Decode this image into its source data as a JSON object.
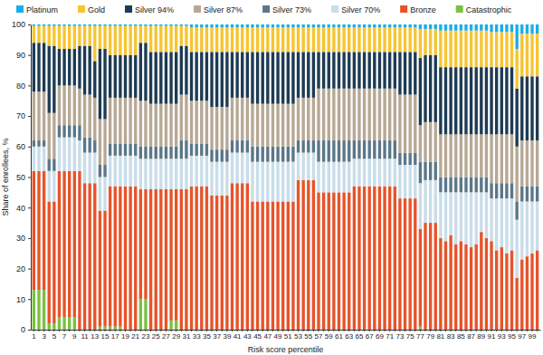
{
  "chart_data": {
    "type": "bar",
    "x_label": "Risk score percentile",
    "y_label": "Share of enrollees, %",
    "stacked": true,
    "legend": "top",
    "ylim": [
      0,
      100
    ],
    "yticks": [
      0,
      10,
      20,
      30,
      40,
      50,
      60,
      70,
      80,
      90,
      100
    ],
    "categories": [
      1,
      null,
      3,
      null,
      5,
      null,
      7,
      null,
      9,
      null,
      11,
      null,
      13,
      null,
      15,
      null,
      17,
      null,
      19,
      null,
      21,
      null,
      23,
      null,
      25,
      null,
      27,
      null,
      29,
      null,
      31,
      null,
      33,
      null,
      35,
      null,
      37,
      null,
      39,
      null,
      41,
      null,
      43,
      null,
      45,
      null,
      47,
      null,
      49,
      null,
      51,
      null,
      53,
      null,
      55,
      null,
      57,
      null,
      59,
      null,
      61,
      null,
      63,
      null,
      65,
      null,
      67,
      null,
      69,
      null,
      71,
      null,
      73,
      null,
      75,
      null,
      77,
      null,
      79,
      null,
      81,
      null,
      83,
      null,
      85,
      null,
      87,
      null,
      89,
      null,
      91,
      null,
      93,
      null,
      95,
      null,
      97,
      null,
      99,
      null
    ],
    "series": [
      {
        "name": "Platinum",
        "color": "#1aaee8",
        "values": [
          0.5,
          0.5,
          0.5,
          0.5,
          0.5,
          0.5,
          0.5,
          0.5,
          0.5,
          0.5,
          0.5,
          0.5,
          0.5,
          0.5,
          0.5,
          0.5,
          0.5,
          0.5,
          0.5,
          0.5,
          0.5,
          0.5,
          0.5,
          0.5,
          0.5,
          0.5,
          0.5,
          0.5,
          0.5,
          0.5,
          0.5,
          1,
          1,
          1,
          1,
          1,
          1,
          1,
          1,
          1,
          1,
          1,
          1,
          1,
          1,
          1,
          1,
          1,
          1,
          1,
          1,
          1,
          1,
          1,
          1,
          1,
          1,
          1,
          1,
          1,
          1,
          1,
          1,
          1,
          1,
          1,
          1,
          1,
          1,
          1,
          1,
          1,
          1,
          1,
          1,
          1,
          1.5,
          1.5,
          1.5,
          1.5,
          2,
          2,
          2,
          2,
          2,
          2,
          2,
          2,
          2,
          2,
          2.5,
          2.5,
          2.5,
          2.5,
          2.5,
          8,
          3,
          3,
          3,
          3
        ]
      },
      {
        "name": "Gold",
        "color": "#f7c531",
        "values": [
          5.5,
          5.5,
          5.5,
          6.5,
          6.5,
          7.5,
          7.5,
          7.5,
          7.5,
          6.5,
          6.5,
          6.5,
          11.5,
          7.5,
          7.5,
          9.5,
          9.5,
          9.5,
          9.5,
          9.5,
          9.5,
          5.5,
          5.5,
          8.5,
          8.5,
          8.5,
          8.5,
          8.5,
          8.5,
          6.5,
          6.5,
          8,
          8,
          8,
          8,
          8,
          8,
          8,
          8,
          8,
          8,
          8,
          8,
          8,
          8,
          8,
          8,
          8,
          8,
          8,
          8,
          8,
          8,
          8,
          8,
          8,
          8,
          8,
          8,
          8,
          8,
          8,
          8,
          8,
          8,
          8,
          8,
          8,
          8,
          8,
          8,
          8,
          8,
          8,
          8,
          8,
          9.5,
          8.5,
          8.5,
          8.5,
          12,
          12,
          12,
          12,
          12,
          12,
          12,
          12,
          12,
          12,
          11.5,
          11.5,
          11.5,
          11.5,
          11.5,
          13,
          14,
          14,
          14,
          14
        ]
      },
      {
        "name": "Silver 94%",
        "color": "#1d3b53",
        "values": [
          16,
          16,
          16,
          22,
          22,
          12,
          12,
          12,
          12,
          14,
          16,
          16,
          12,
          23,
          23,
          14,
          14,
          14,
          14,
          14,
          14,
          19,
          19,
          17,
          17,
          17,
          17,
          17,
          17,
          16,
          16,
          16,
          16,
          16,
          16,
          18,
          18,
          18,
          18,
          15,
          15,
          15,
          15,
          17,
          17,
          17,
          17,
          17,
          17,
          17,
          17,
          17,
          15,
          15,
          15,
          15,
          12,
          12,
          12,
          12,
          12,
          12,
          12,
          12,
          12,
          12,
          12,
          12,
          12,
          12,
          12,
          12,
          14,
          14,
          14,
          14,
          22,
          22,
          22,
          22,
          22,
          22,
          22,
          22,
          22,
          22,
          22,
          22,
          22,
          22,
          22,
          22,
          22,
          22,
          22,
          19,
          21,
          21,
          21,
          21
        ]
      },
      {
        "name": "Silver 87%",
        "color": "#b7a895",
        "values": [
          16,
          16,
          16,
          15,
          15,
          13,
          13,
          13,
          13,
          12,
          14,
          14,
          14,
          15,
          15,
          15,
          15,
          15,
          15,
          15,
          15,
          15,
          15,
          14,
          14,
          14,
          14,
          14,
          14,
          15,
          15,
          14,
          14,
          14,
          14,
          14,
          14,
          14,
          14,
          14,
          14,
          14,
          14,
          14,
          14,
          14,
          14,
          14,
          14,
          14,
          14,
          14,
          14,
          14,
          14,
          14,
          17,
          17,
          17,
          17,
          17,
          17,
          17,
          17,
          17,
          17,
          17,
          17,
          17,
          17,
          17,
          17,
          19,
          19,
          19,
          19,
          12,
          13,
          13,
          13,
          14,
          14,
          14,
          14,
          14,
          14,
          14,
          14,
          14,
          14,
          16,
          16,
          16,
          16,
          16,
          18,
          15,
          15,
          15,
          15
        ]
      },
      {
        "name": "Silver 73%",
        "color": "#5b7789",
        "values": [
          2,
          2,
          2,
          4,
          4,
          4,
          4,
          4,
          4,
          5,
          5,
          5,
          4,
          4,
          4,
          4,
          4,
          4,
          4,
          4,
          4,
          4,
          4,
          4,
          4,
          4,
          4,
          4,
          4,
          6,
          6,
          4,
          4,
          4,
          4,
          4,
          4,
          4,
          4,
          4,
          4,
          4,
          4,
          5,
          5,
          5,
          5,
          5,
          5,
          5,
          5,
          5,
          4,
          4,
          4,
          4,
          7,
          7,
          7,
          7,
          7,
          7,
          7,
          6,
          6,
          6,
          6,
          6,
          6,
          6,
          6,
          6,
          4,
          4,
          4,
          4,
          7,
          6,
          6,
          6,
          5,
          5,
          5,
          5,
          5,
          5,
          5,
          5,
          5,
          5,
          5,
          5,
          5,
          5,
          5,
          6,
          5,
          5,
          5,
          5
        ]
      },
      {
        "name": "Silver 70%",
        "color": "#c9dde9",
        "values": [
          8,
          8,
          8,
          10,
          10,
          11,
          11,
          11,
          11,
          10,
          10,
          10,
          10,
          11,
          11,
          10,
          10,
          10,
          10,
          10,
          10,
          10,
          10,
          10,
          10,
          10,
          10,
          10,
          10,
          10,
          10,
          10,
          10,
          10,
          10,
          11,
          11,
          11,
          11,
          10,
          10,
          10,
          10,
          13,
          13,
          13,
          13,
          13,
          13,
          13,
          13,
          13,
          9,
          9,
          9,
          9,
          10,
          10,
          10,
          10,
          10,
          10,
          10,
          9,
          9,
          9,
          9,
          9,
          9,
          9,
          9,
          9,
          11,
          11,
          11,
          11,
          15,
          14,
          14,
          14,
          15,
          16,
          14,
          17,
          16,
          17,
          18,
          17,
          13,
          15,
          14,
          17,
          16,
          18,
          17,
          19,
          19,
          18,
          17,
          16
        ]
      },
      {
        "name": "Bronze",
        "color": "#e6542b",
        "values": [
          39,
          39,
          39,
          40,
          40,
          48,
          48,
          48,
          48,
          52,
          48,
          48,
          48,
          38,
          38,
          46,
          46,
          46,
          47,
          47,
          47,
          36,
          36,
          46,
          46,
          46,
          46,
          43,
          43,
          46,
          46,
          47,
          47,
          47,
          47,
          44,
          44,
          44,
          44,
          48,
          48,
          48,
          48,
          42,
          42,
          42,
          42,
          42,
          42,
          42,
          42,
          42,
          49,
          49,
          49,
          49,
          45,
          45,
          45,
          45,
          45,
          45,
          45,
          47,
          47,
          47,
          47,
          47,
          47,
          47,
          47,
          47,
          43,
          43,
          43,
          43,
          32,
          35,
          35,
          35,
          30,
          29,
          31,
          28,
          29,
          28,
          27,
          28,
          32,
          30,
          29,
          26,
          27,
          25,
          26,
          17,
          23,
          24,
          25,
          26
        ]
      },
      {
        "name": "Catastrophic",
        "color": "#7ac143",
        "values": [
          13,
          13,
          13,
          2,
          2,
          4,
          4,
          4,
          4,
          0,
          0,
          0,
          0,
          1,
          1,
          1,
          1,
          1,
          0,
          0,
          0,
          10,
          10,
          0,
          0,
          0,
          0,
          3,
          3,
          0,
          0,
          0,
          0,
          0,
          0,
          0,
          0,
          0,
          0,
          0,
          0,
          0,
          0,
          0,
          0,
          0,
          0,
          0,
          0,
          0,
          0,
          0,
          0,
          0,
          0,
          0,
          0,
          0,
          0,
          0,
          0,
          0,
          0,
          0,
          0,
          0,
          0,
          0,
          0,
          0,
          0,
          0,
          0,
          0,
          0,
          0,
          1,
          0,
          0,
          0,
          0,
          0,
          0,
          0,
          0,
          0,
          0,
          0,
          0,
          0,
          0,
          0,
          0,
          0,
          0,
          0,
          0,
          0,
          0,
          0
        ]
      }
    ]
  }
}
